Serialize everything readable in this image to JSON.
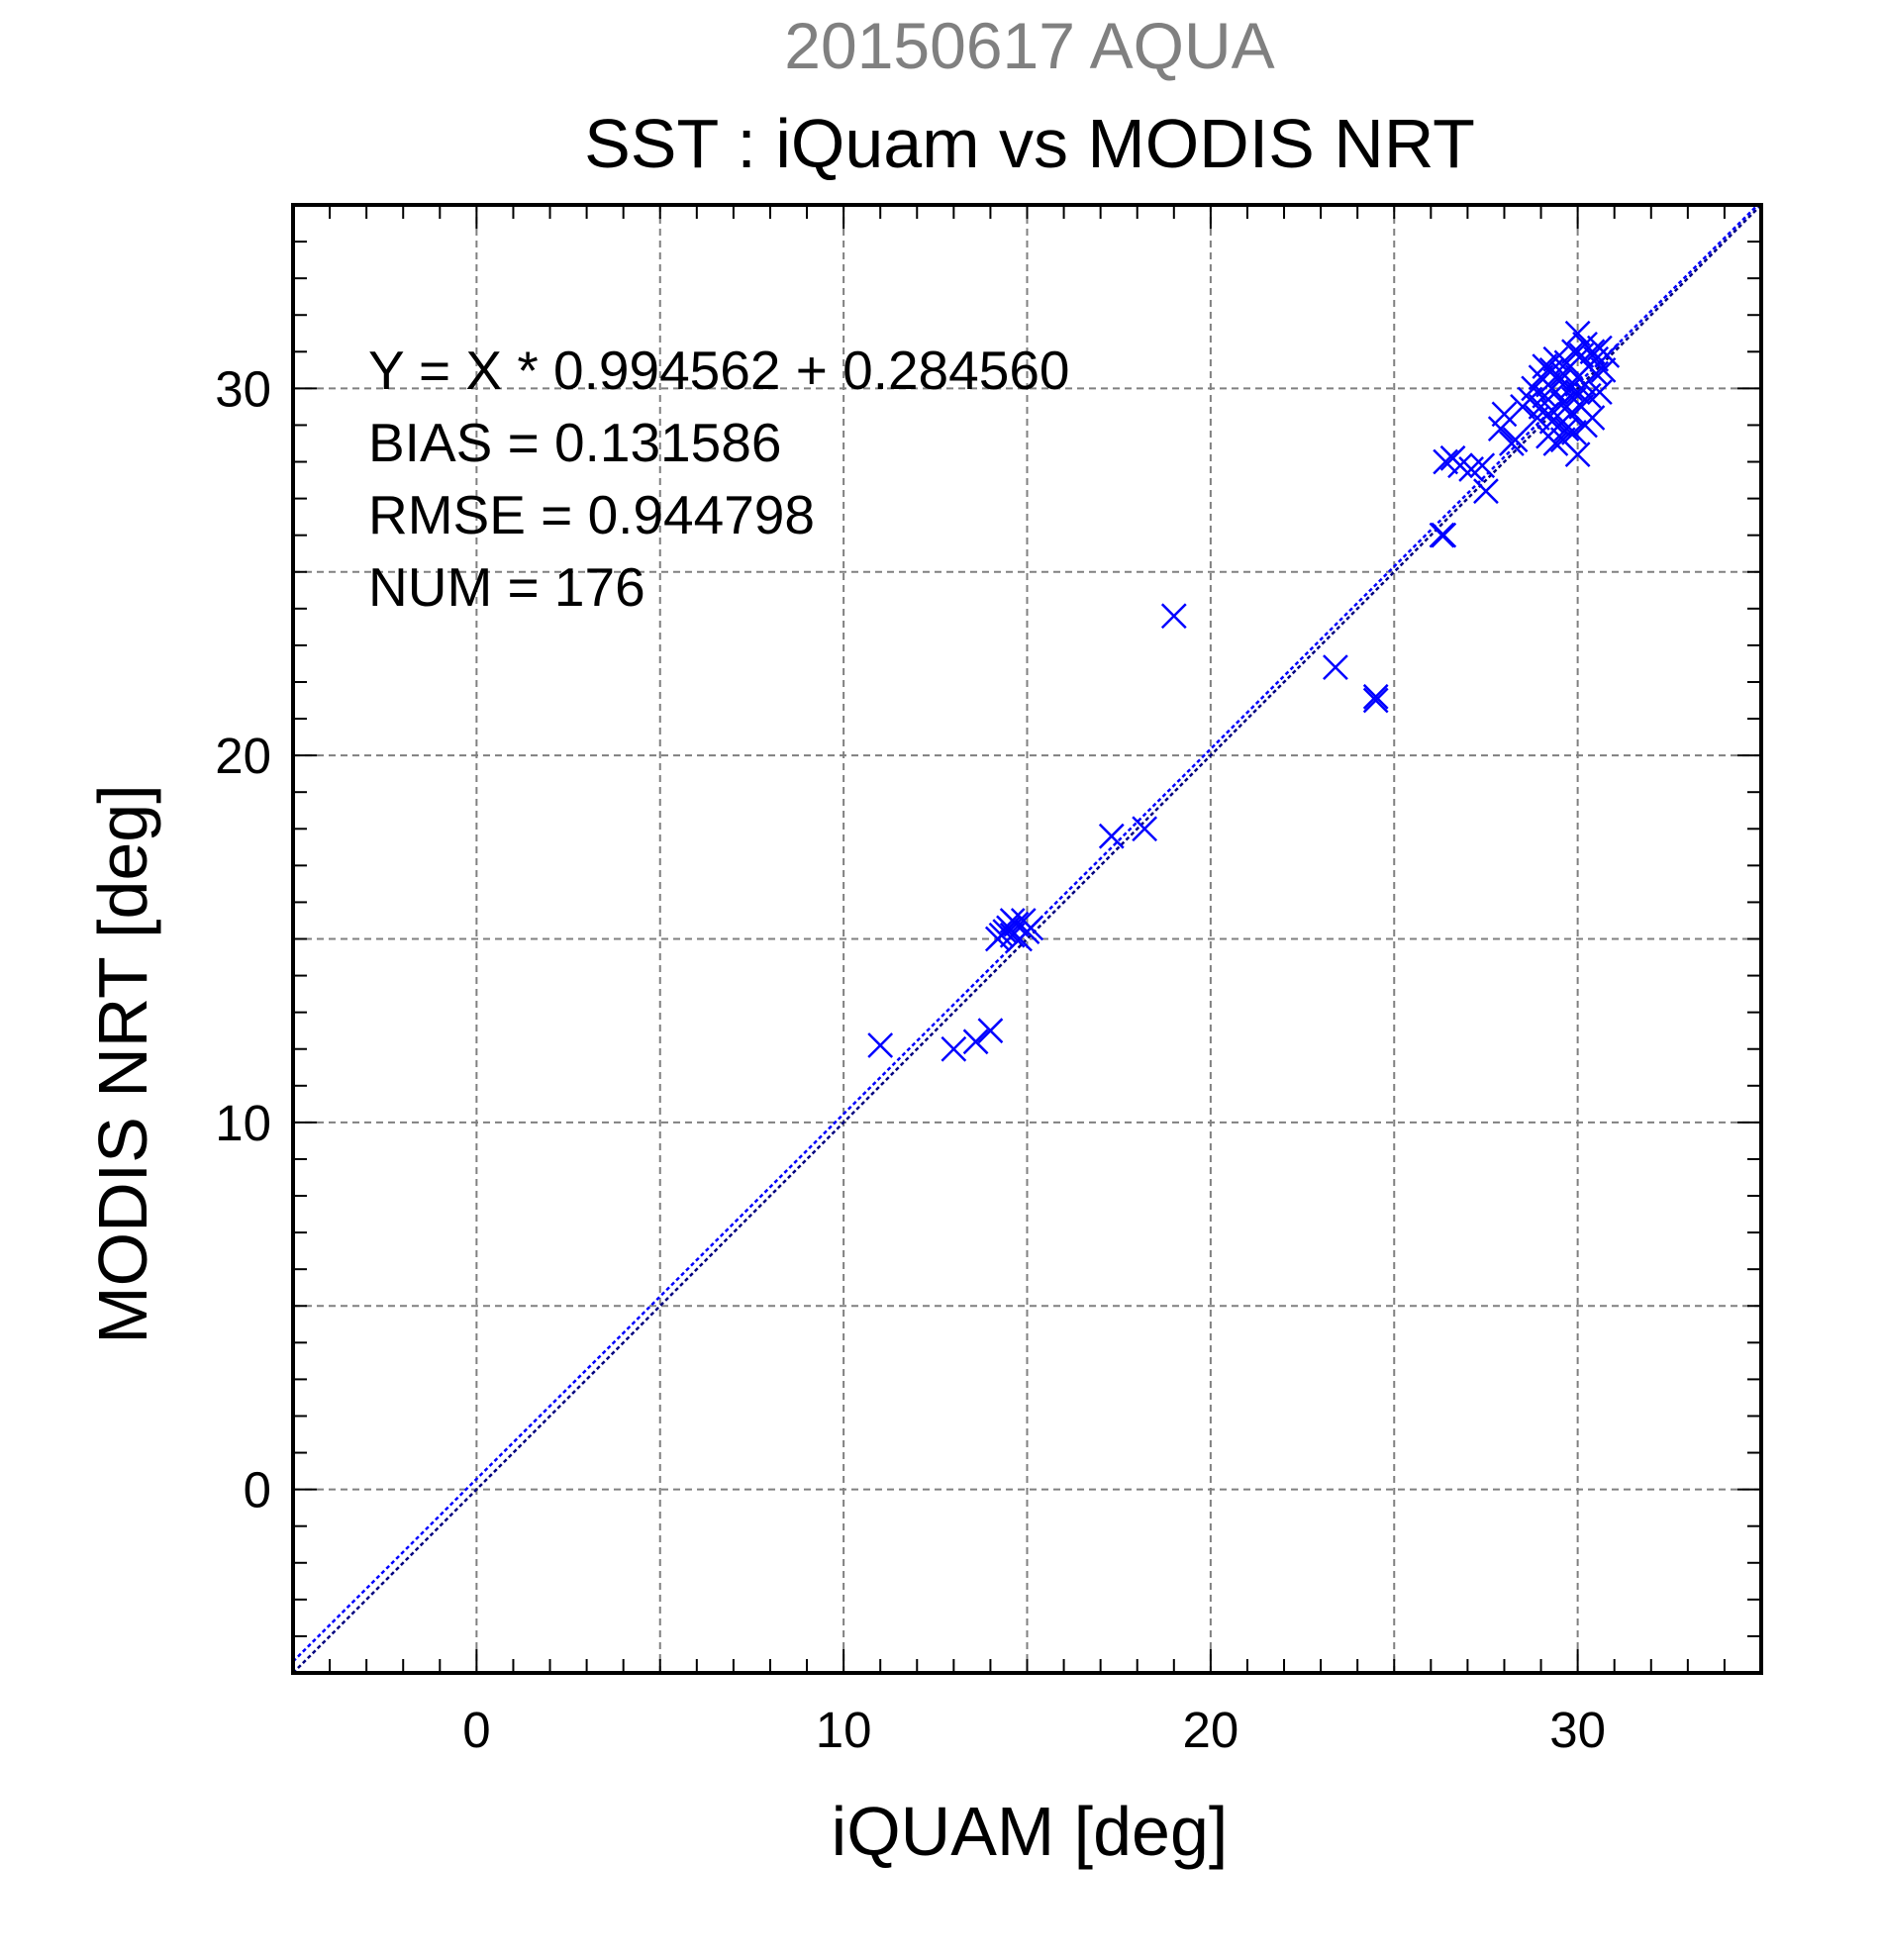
{
  "header": {
    "date_title": "20150617 AQUA",
    "main_title": "SST : iQuam vs MODIS NRT"
  },
  "stats": {
    "regression": "Y = X * 0.994562 + 0.284560",
    "bias": "BIAS = 0.131586",
    "rmse": "RMSE = 0.944798",
    "num": "NUM = 176"
  },
  "colors": {
    "marker": "#0000ff",
    "regression_line": "#0000ff",
    "identity_line": "#000080",
    "grid": "#808080"
  },
  "chart_data": {
    "type": "scatter",
    "title": "SST : iQuam vs MODIS NRT",
    "xlabel": "iQUAM [deg]",
    "ylabel": "MODIS NRT [deg]",
    "xlim": [
      -5,
      35
    ],
    "ylim": [
      -5,
      35
    ],
    "xticks": [
      0,
      10,
      20,
      30
    ],
    "yticks": [
      0,
      10,
      20,
      30
    ],
    "grid": true,
    "marker": "x",
    "regression": {
      "slope": 0.994562,
      "intercept": 0.28456
    },
    "identity_line": true,
    "series": [
      {
        "points": [
          [
            11.0,
            12.1
          ],
          [
            13.0,
            12.0
          ],
          [
            13.6,
            12.2
          ],
          [
            14.0,
            12.5
          ],
          [
            14.2,
            15.0
          ],
          [
            14.4,
            15.2
          ],
          [
            14.5,
            15.3
          ],
          [
            14.6,
            15.1
          ],
          [
            14.7,
            15.4
          ],
          [
            14.8,
            15.0
          ],
          [
            14.9,
            15.5
          ],
          [
            15.0,
            15.2
          ],
          [
            15.1,
            15.3
          ],
          [
            14.3,
            15.1
          ],
          [
            14.6,
            15.5
          ],
          [
            17.3,
            17.8
          ],
          [
            18.2,
            18.0
          ],
          [
            19.0,
            23.8
          ],
          [
            23.4,
            22.4
          ],
          [
            24.5,
            21.5
          ],
          [
            24.5,
            21.6
          ],
          [
            26.3,
            26.0
          ],
          [
            26.35,
            26.0
          ],
          [
            26.4,
            28.0
          ],
          [
            26.6,
            28.1
          ],
          [
            26.8,
            27.9
          ],
          [
            27.1,
            27.8
          ],
          [
            27.4,
            27.9
          ],
          [
            27.5,
            27.2
          ],
          [
            27.9,
            28.9
          ],
          [
            28.0,
            29.3
          ],
          [
            28.2,
            28.5
          ],
          [
            28.3,
            28.6
          ],
          [
            28.5,
            29.5
          ],
          [
            28.7,
            29.7
          ],
          [
            28.8,
            30.0
          ],
          [
            28.9,
            29.2
          ],
          [
            29.0,
            30.3
          ],
          [
            29.0,
            29.5
          ],
          [
            29.1,
            29.8
          ],
          [
            29.2,
            28.7
          ],
          [
            29.2,
            30.1
          ],
          [
            29.3,
            29.4
          ],
          [
            29.3,
            30.5
          ],
          [
            29.4,
            28.5
          ],
          [
            29.4,
            29.9
          ],
          [
            29.5,
            30.2
          ],
          [
            29.5,
            29.0
          ],
          [
            29.6,
            30.4
          ],
          [
            29.6,
            29.6
          ],
          [
            29.7,
            28.9
          ],
          [
            29.7,
            30.7
          ],
          [
            29.8,
            29.3
          ],
          [
            29.8,
            30.0
          ],
          [
            29.9,
            31.0
          ],
          [
            29.9,
            29.7
          ],
          [
            30.0,
            28.2
          ],
          [
            30.0,
            30.3
          ],
          [
            30.0,
            31.5
          ],
          [
            30.1,
            29.5
          ],
          [
            30.1,
            30.9
          ],
          [
            30.2,
            30.1
          ],
          [
            30.2,
            31.2
          ],
          [
            30.3,
            29.8
          ],
          [
            30.3,
            30.6
          ],
          [
            30.4,
            31.0
          ],
          [
            30.4,
            29.2
          ],
          [
            30.5,
            30.4
          ],
          [
            30.5,
            30.8
          ],
          [
            30.6,
            31.1
          ],
          [
            30.6,
            29.9
          ],
          [
            30.7,
            30.5
          ],
          [
            30.8,
            30.9
          ],
          [
            29.3,
            29.1
          ],
          [
            29.6,
            28.6
          ],
          [
            29.9,
            28.8
          ],
          [
            30.2,
            29.0
          ],
          [
            29.1,
            30.6
          ],
          [
            29.4,
            30.8
          ],
          [
            30.0,
            29.9
          ]
        ]
      }
    ]
  }
}
